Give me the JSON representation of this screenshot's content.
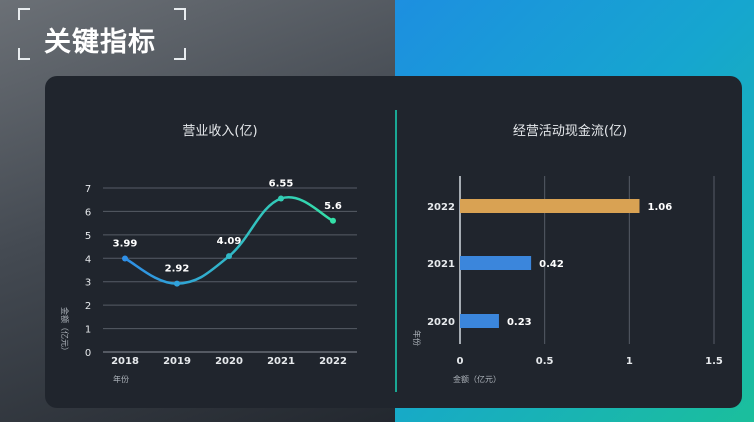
{
  "page": {
    "title": "关键指标"
  },
  "colors": {
    "line_start": "#2f8fe6",
    "line_end": "#34e0a8",
    "bar_highlight": "#d9a253",
    "bar_default": "#3b86dc",
    "text": "#e6e9ec",
    "grid": "#565c66"
  },
  "chart_data": [
    {
      "type": "line",
      "title": "营业收入(亿)",
      "xlabel": "年份",
      "ylabel": "金额（亿元）",
      "categories": [
        "2018",
        "2019",
        "2020",
        "2021",
        "2022"
      ],
      "values": [
        3.99,
        2.92,
        4.09,
        6.55,
        5.6
      ],
      "value_labels": [
        "3.99",
        "2.92",
        "4.09",
        "6.55",
        "5.6"
      ],
      "ylim": [
        0,
        7
      ],
      "yticks": [
        "0",
        "1",
        "2",
        "3",
        "4",
        "5",
        "6",
        "7"
      ],
      "grid": "horizontal",
      "smooth": true
    },
    {
      "type": "bar",
      "orientation": "horizontal",
      "title": "经营活动现金流(亿)",
      "xlabel": "金额（亿元）",
      "ylabel": "年份",
      "categories": [
        "2022",
        "2021",
        "2020"
      ],
      "values": [
        1.06,
        0.42,
        0.23
      ],
      "value_labels": [
        "1.06",
        "0.42",
        "0.23"
      ],
      "xlim": [
        0,
        1.5
      ],
      "xticks": [
        "0",
        "0.5",
        "1",
        "1.5"
      ],
      "grid": "vertical"
    }
  ]
}
